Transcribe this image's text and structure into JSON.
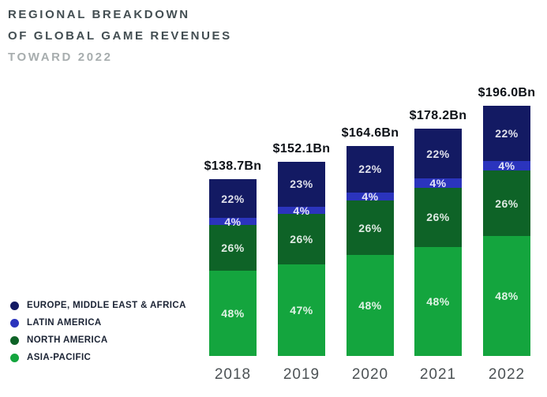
{
  "header": {
    "title_line1": "REGIONAL BREAKDOWN",
    "title_line2": "OF GLOBAL GAME REVENUES",
    "subtitle": "TOWARD 2022"
  },
  "legend": {
    "items": [
      {
        "label": "EUROPE, MIDDLE EAST & AFRICA",
        "color": "#131a63"
      },
      {
        "label": "LATIN AMERICA",
        "color": "#2b34bd"
      },
      {
        "label": "NORTH AMERICA",
        "color": "#0e6327"
      },
      {
        "label": "ASIA-PACIFIC",
        "color": "#14a53e"
      }
    ]
  },
  "chart_data": {
    "type": "bar",
    "stacked": true,
    "title": "Regional breakdown of global game revenues toward 2022",
    "unit": "USD billions",
    "x": [
      "2018",
      "2019",
      "2020",
      "2021",
      "2022"
    ],
    "totals_bn": [
      138.7,
      152.1,
      164.6,
      178.2,
      196.0
    ],
    "total_labels": [
      "$138.7Bn",
      "$152.1Bn",
      "$164.6Bn",
      "$178.2Bn",
      "$196.0Bn"
    ],
    "series": [
      {
        "name": "ASIA-PACIFIC",
        "color": "#14a53e",
        "values_pct": [
          48,
          47,
          48,
          48,
          48
        ]
      },
      {
        "name": "NORTH AMERICA",
        "color": "#0e6327",
        "values_pct": [
          26,
          26,
          26,
          26,
          26
        ]
      },
      {
        "name": "LATIN AMERICA",
        "color": "#2b34bd",
        "values_pct": [
          4,
          4,
          4,
          4,
          4
        ]
      },
      {
        "name": "EUROPE, MIDDLE EAST & AFRICA",
        "color": "#131a63",
        "values_pct": [
          22,
          23,
          22,
          22,
          22
        ]
      }
    ],
    "stack_order_bottom_to_top": [
      "ASIA-PACIFIC",
      "NORTH AMERICA",
      "LATIN AMERICA",
      "EUROPE, MIDDLE EAST & AFRICA"
    ],
    "legend_position": "bottom-left",
    "grid": false,
    "axis_ranges": {
      "y_implied_bn": [
        0,
        196
      ]
    }
  }
}
